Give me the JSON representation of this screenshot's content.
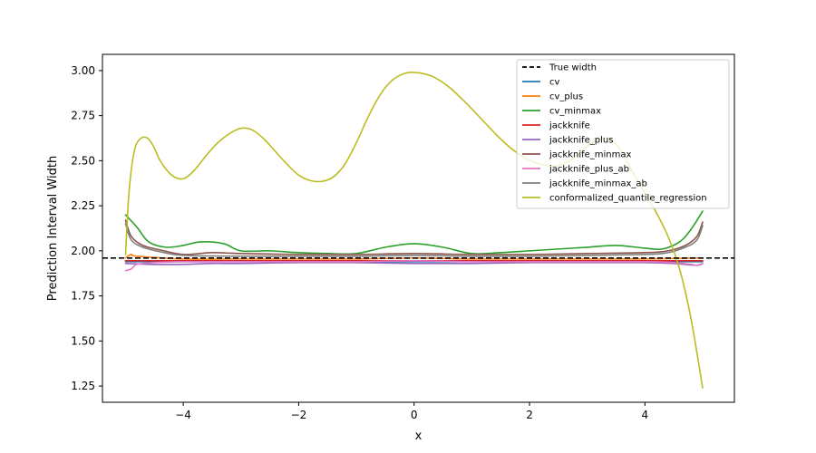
{
  "chart_data": {
    "type": "line",
    "title": "",
    "xlabel": "x",
    "ylabel": "Prediction Interval Width",
    "xlim": [
      -5.4,
      5.55
    ],
    "ylim": [
      1.16,
      3.09
    ],
    "xticks": [
      -4,
      -2,
      0,
      2,
      4
    ],
    "xtick_labels": [
      "−4",
      "−2",
      "0",
      "2",
      "4"
    ],
    "yticks": [
      1.25,
      1.5,
      1.75,
      2.0,
      2.25,
      2.5,
      2.75,
      3.0
    ],
    "ytick_labels": [
      "1.25",
      "1.50",
      "1.75",
      "2.00",
      "2.25",
      "2.50",
      "2.75",
      "3.00"
    ],
    "grid": false,
    "legend_position": "top-right",
    "reference_line": {
      "name": "True width",
      "y": 1.96,
      "color": "#000000",
      "style": "dashed"
    },
    "series": [
      {
        "name": "cv",
        "color": "#1f77b4",
        "x": [
          -5,
          -4,
          -3,
          -2,
          -1,
          0,
          1,
          2,
          3,
          4,
          5
        ],
        "y": [
          1.94,
          1.94,
          1.94,
          1.94,
          1.94,
          1.94,
          1.94,
          1.94,
          1.94,
          1.94,
          1.94
        ]
      },
      {
        "name": "cv_plus",
        "color": "#ff7f0e",
        "x": [
          -5,
          -4.9,
          -4.8,
          -4,
          -3,
          -2,
          -1,
          0,
          1,
          2,
          3,
          4,
          4.9,
          5
        ],
        "y": [
          1.96,
          1.98,
          1.97,
          1.955,
          1.955,
          1.955,
          1.955,
          1.96,
          1.955,
          1.955,
          1.955,
          1.955,
          1.96,
          1.96
        ]
      },
      {
        "name": "cv_minmax",
        "color": "#2ca02c",
        "x": [
          -5,
          -4.8,
          -4.6,
          -4.3,
          -4.0,
          -3.7,
          -3.3,
          -3.0,
          -2.5,
          -2.0,
          -1.5,
          -1.0,
          -0.5,
          0,
          0.5,
          1.0,
          1.5,
          2.0,
          2.5,
          3.0,
          3.5,
          4.0,
          4.3,
          4.6,
          4.8,
          5.0
        ],
        "y": [
          2.2,
          2.13,
          2.05,
          2.02,
          2.03,
          2.05,
          2.04,
          2.0,
          2.0,
          1.99,
          1.985,
          1.985,
          2.02,
          2.04,
          2.02,
          1.985,
          1.99,
          2.0,
          2.01,
          2.02,
          2.03,
          2.015,
          2.01,
          2.05,
          2.12,
          2.22
        ]
      },
      {
        "name": "jackknife",
        "color": "#d62728",
        "x": [
          -5,
          -4,
          -3,
          -2,
          -1,
          0,
          1,
          2,
          3,
          4,
          5
        ],
        "y": [
          1.945,
          1.945,
          1.945,
          1.945,
          1.945,
          1.945,
          1.945,
          1.945,
          1.945,
          1.945,
          1.945
        ]
      },
      {
        "name": "jackknife_plus",
        "color": "#9467bd",
        "x": [
          -5,
          -4.5,
          -4,
          -3.5,
          -3,
          -2,
          -1,
          0,
          1,
          2,
          3,
          4,
          4.5,
          4.9,
          5
        ],
        "y": [
          1.93,
          1.925,
          1.925,
          1.93,
          1.93,
          1.935,
          1.935,
          1.93,
          1.93,
          1.935,
          1.935,
          1.935,
          1.93,
          1.92,
          1.93
        ]
      },
      {
        "name": "jackknife_minmax",
        "color": "#8c564b",
        "x": [
          -5,
          -4.9,
          -4.7,
          -4.4,
          -4.0,
          -3.5,
          -3.0,
          -2.0,
          -1.0,
          0,
          1.0,
          2.0,
          3.0,
          4.0,
          4.4,
          4.7,
          4.9,
          5.0
        ],
        "y": [
          2.17,
          2.08,
          2.03,
          2.005,
          1.98,
          1.99,
          1.985,
          1.98,
          1.98,
          1.985,
          1.98,
          1.98,
          1.985,
          1.99,
          2.0,
          2.03,
          2.08,
          2.16
        ]
      },
      {
        "name": "jackknife_plus_ab",
        "color": "#e377c2",
        "x": [
          -5,
          -4.9,
          -4.8,
          -4.5,
          -4,
          -3,
          -2,
          -1,
          0,
          1,
          2,
          3,
          4,
          4.5,
          4.8,
          4.9,
          5
        ],
        "y": [
          1.89,
          1.9,
          1.925,
          1.935,
          1.94,
          1.94,
          1.94,
          1.94,
          1.945,
          1.94,
          1.94,
          1.94,
          1.94,
          1.935,
          1.925,
          1.92,
          1.93
        ]
      },
      {
        "name": "jackknife_minmax_ab",
        "color": "#7f7f7f",
        "x": [
          -5,
          -4.9,
          -4.7,
          -4.4,
          -4.0,
          -3.0,
          -2.0,
          -1.0,
          0,
          1.0,
          2.0,
          3.0,
          4.0,
          4.4,
          4.7,
          4.9,
          5.0
        ],
        "y": [
          2.15,
          2.06,
          2.02,
          1.995,
          1.975,
          1.97,
          1.97,
          1.97,
          1.975,
          1.97,
          1.97,
          1.975,
          1.98,
          1.99,
          2.02,
          2.06,
          2.14
        ]
      },
      {
        "name": "conformalized_quantile_regression",
        "color": "#bcbd22",
        "x": [
          -5.0,
          -4.95,
          -4.9,
          -4.85,
          -4.8,
          -4.7,
          -4.6,
          -4.5,
          -4.4,
          -4.2,
          -4.0,
          -3.8,
          -3.6,
          -3.4,
          -3.2,
          -3.0,
          -2.8,
          -2.6,
          -2.4,
          -2.2,
          -2.0,
          -1.8,
          -1.6,
          -1.4,
          -1.2,
          -1.0,
          -0.8,
          -0.6,
          -0.4,
          -0.2,
          0.0,
          0.3,
          0.6,
          0.9,
          1.2,
          1.5,
          1.8,
          2.1,
          2.4,
          2.7,
          3.0,
          3.2,
          3.4,
          3.6,
          3.8,
          4.0,
          4.2,
          4.4,
          4.6,
          4.8,
          5.0
        ],
        "y": [
          1.98,
          2.28,
          2.45,
          2.55,
          2.6,
          2.63,
          2.62,
          2.57,
          2.5,
          2.42,
          2.4,
          2.45,
          2.53,
          2.6,
          2.65,
          2.68,
          2.67,
          2.62,
          2.55,
          2.48,
          2.42,
          2.39,
          2.385,
          2.41,
          2.48,
          2.6,
          2.74,
          2.86,
          2.94,
          2.98,
          2.99,
          2.97,
          2.91,
          2.82,
          2.72,
          2.62,
          2.54,
          2.49,
          2.47,
          2.5,
          2.58,
          2.62,
          2.62,
          2.55,
          2.43,
          2.32,
          2.21,
          2.08,
          1.9,
          1.62,
          1.24
        ]
      }
    ]
  }
}
